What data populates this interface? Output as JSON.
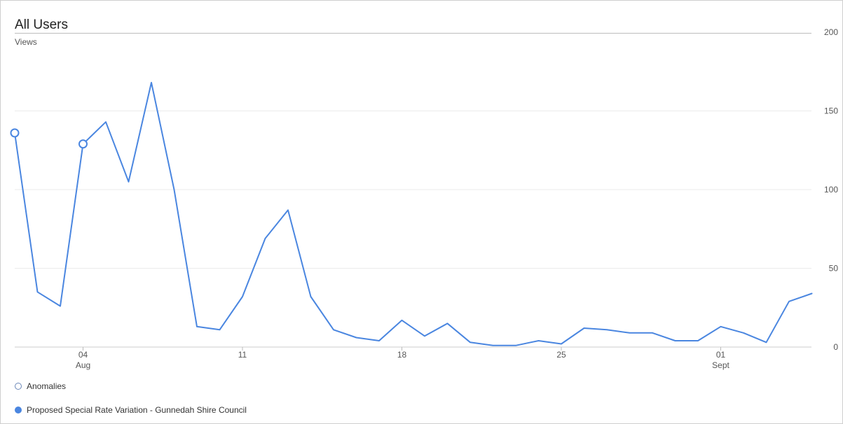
{
  "chart_data": {
    "type": "line",
    "title": "All Users",
    "ylabel": "Views",
    "ylim": [
      0,
      200
    ],
    "yticks": [
      0,
      50,
      100,
      150,
      200
    ],
    "grid": true,
    "y_axis_side": "right",
    "x_tick_labels": [
      {
        "index": 3,
        "line1": "04",
        "line2": "Aug"
      },
      {
        "index": 10,
        "line1": "11",
        "line2": ""
      },
      {
        "index": 17,
        "line1": "18",
        "line2": ""
      },
      {
        "index": 24,
        "line1": "25",
        "line2": ""
      },
      {
        "index": 31,
        "line1": "01",
        "line2": "Sept"
      }
    ],
    "series": [
      {
        "name": "Proposed Special Rate Variation - Gunnedah Shire Council",
        "color": "#4a86e0",
        "values": [
          136,
          35,
          26,
          129,
          143,
          105,
          168,
          100,
          13,
          11,
          32,
          69,
          87,
          32,
          11,
          6,
          4,
          17,
          7,
          15,
          3,
          1,
          1,
          4,
          2,
          12,
          11,
          9,
          9,
          4,
          4,
          13,
          9,
          3,
          29,
          34
        ]
      }
    ],
    "anomalies": [
      0,
      3
    ],
    "legend": {
      "position": "bottom-left",
      "anomalies_label": "Anomalies",
      "anomalies_color": "#6a87b8"
    }
  }
}
